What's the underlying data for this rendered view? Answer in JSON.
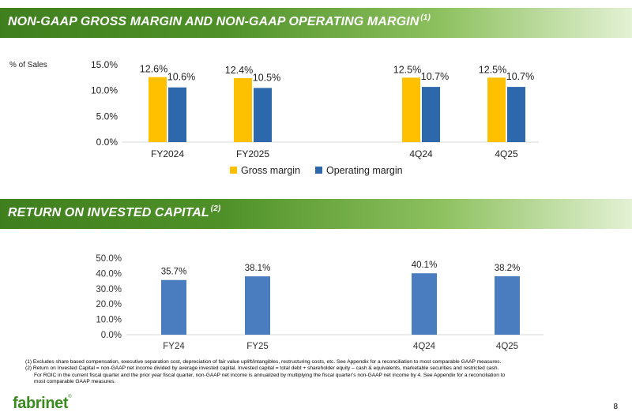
{
  "sections": {
    "top_title": "NON-GAAP GROSS MARGIN AND NON-GAAP OPERATING MARGIN",
    "top_footnote_mark": "(1)",
    "bottom_title": "RETURN ON INVESTED CAPITAL",
    "bottom_footnote_mark": "(2)"
  },
  "unit_label": "% of Sales",
  "colors": {
    "gross": "#ffc000",
    "operating": "#2e68ac",
    "roic": "#4a7cc0",
    "axis": "#d9d9d9",
    "banner_start": "#3f7f1e",
    "banner_end": "#e3f1d4"
  },
  "chart_data": [
    {
      "type": "bar",
      "title": "NON-GAAP GROSS MARGIN AND NON-GAAP OPERATING MARGIN",
      "ylabel": "% of Sales",
      "categories": [
        "FY2024",
        "FY2025",
        "4Q24",
        "4Q25"
      ],
      "series": [
        {
          "name": "Gross margin",
          "values": [
            12.6,
            12.4,
            12.5,
            12.5
          ],
          "labels": [
            "12.6%",
            "12.4%",
            "12.5%",
            "12.5%"
          ]
        },
        {
          "name": "Operating margin",
          "values": [
            10.6,
            10.5,
            10.7,
            10.7
          ],
          "labels": [
            "10.6%",
            "10.5%",
            "10.7%",
            "10.7%"
          ]
        }
      ],
      "ylim": [
        0,
        15
      ],
      "yticks": [
        "0.0%",
        "5.0%",
        "10.0%",
        "15.0%"
      ],
      "legend": "bottom"
    },
    {
      "type": "bar",
      "title": "RETURN ON INVESTED CAPITAL",
      "categories": [
        "FY24",
        "FY25",
        "4Q24",
        "4Q25"
      ],
      "series": [
        {
          "name": "ROIC",
          "values": [
            35.7,
            38.1,
            40.1,
            38.2
          ],
          "labels": [
            "35.7%",
            "38.1%",
            "40.1%",
            "38.2%"
          ]
        }
      ],
      "ylim": [
        0,
        50
      ],
      "yticks": [
        "0.0%",
        "10.0%",
        "20.0%",
        "30.0%",
        "40.0%",
        "50.0%"
      ],
      "legend": "none"
    }
  ],
  "footnotes": {
    "note1": "(1) Excludes share based compensation, executive separation cost, depreciation of  fair value uplift/intangibles, restructuring costs, etc. See Appendix for a reconciliation to most comparable GAAP measures.",
    "note2_line1": "(2) Return on Invested Capital = non-GAAP net income divided by average invested capital. Invested capital = total debt + shareholder equity – cash & equivalents, marketable securities and restricted cash.",
    "note2_line2": "For ROIC in the current fiscal quarter and the prior year fiscal quarter, non-GAAP net income is annualized by multiplying the fiscal quarter’s non-GAAP net income by 4. See Appendix for a reconciliation to",
    "note2_line3": "most comparable GAAP measures."
  },
  "logo_text": "fabrinet",
  "logo_mark": "®",
  "page_number": "8"
}
